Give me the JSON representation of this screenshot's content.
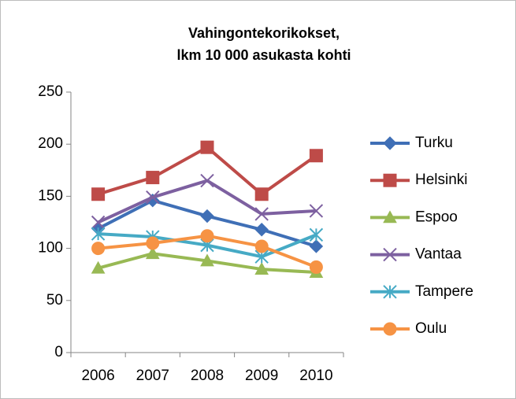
{
  "chart_data": {
    "type": "line",
    "title": [
      "Vahingontekorikokset,",
      "lkm 10 000 asukasta kohti"
    ],
    "categories": [
      "2006",
      "2007",
      "2008",
      "2009",
      "2010"
    ],
    "series": [
      {
        "name": "Turku",
        "color": "#3f6fb6",
        "marker": "diamond",
        "values": [
          119,
          146,
          131,
          118,
          102
        ]
      },
      {
        "name": "Helsinki",
        "color": "#be4b48",
        "marker": "square",
        "values": [
          152,
          168,
          197,
          152,
          189
        ]
      },
      {
        "name": "Espoo",
        "color": "#98b954",
        "marker": "triangle",
        "values": [
          81,
          95,
          88,
          80,
          77
        ]
      },
      {
        "name": "Vantaa",
        "color": "#7d60a0",
        "marker": "x",
        "values": [
          125,
          149,
          165,
          133,
          136
        ]
      },
      {
        "name": "Tampere",
        "color": "#46aac5",
        "marker": "star",
        "values": [
          114,
          111,
          103,
          92,
          113
        ]
      },
      {
        "name": "Oulu",
        "color": "#f69344",
        "marker": "circle",
        "values": [
          100,
          105,
          112,
          102,
          82
        ]
      }
    ],
    "ylim": [
      0,
      250
    ],
    "yticks": [
      0,
      50,
      100,
      150,
      200,
      250
    ],
    "grid": false,
    "legend": "right"
  }
}
